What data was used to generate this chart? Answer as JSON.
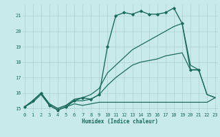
{
  "background_color": "#c8eaea",
  "grid_color": "#b0d0d0",
  "line_color": "#1a6b5a",
  "xlim": [
    -0.3,
    23.3
  ],
  "ylim": [
    14.75,
    21.75
  ],
  "xlabel": "Humidex (Indice chaleur)",
  "yticks": [
    15,
    16,
    17,
    18,
    19,
    20,
    21
  ],
  "xticks": [
    0,
    1,
    2,
    3,
    4,
    5,
    6,
    7,
    8,
    9,
    10,
    11,
    12,
    13,
    14,
    15,
    16,
    17,
    18,
    19,
    20,
    21,
    22,
    23
  ],
  "series": [
    {
      "x": [
        0,
        1,
        2,
        3,
        4,
        5,
        6,
        7,
        8,
        9,
        10,
        11,
        12,
        13,
        14,
        15,
        16,
        17,
        18,
        19,
        20,
        21,
        22,
        23
      ],
      "y": [
        15.1,
        15.4,
        15.9,
        15.2,
        14.9,
        15.1,
        15.3,
        15.2,
        15.3,
        15.4,
        15.4,
        15.4,
        15.4,
        15.4,
        15.4,
        15.4,
        15.4,
        15.4,
        15.4,
        15.4,
        15.4,
        15.4,
        15.4,
        15.7
      ],
      "marker": false,
      "linewidth": 0.9
    },
    {
      "x": [
        0,
        1,
        2,
        3,
        4,
        5,
        6,
        7,
        8,
        9,
        10,
        11,
        12,
        13,
        14,
        15,
        16,
        17,
        18,
        19,
        20,
        21,
        22,
        23
      ],
      "y": [
        15.1,
        15.5,
        16.0,
        15.3,
        15.0,
        15.2,
        15.5,
        15.5,
        15.6,
        15.9,
        16.5,
        17.0,
        17.4,
        17.8,
        18.0,
        18.1,
        18.2,
        18.4,
        18.5,
        18.6,
        17.5,
        17.5,
        15.9,
        15.7
      ],
      "marker": false,
      "linewidth": 0.9
    },
    {
      "x": [
        0,
        1,
        2,
        3,
        4,
        5,
        6,
        7,
        8,
        9,
        10,
        11,
        12,
        13,
        14,
        15,
        16,
        17,
        18,
        19,
        20,
        21,
        22,
        23
      ],
      "y": [
        15.1,
        15.5,
        16.0,
        15.3,
        15.0,
        15.2,
        15.6,
        15.7,
        15.9,
        16.3,
        17.3,
        17.8,
        18.3,
        18.8,
        19.1,
        19.4,
        19.7,
        20.0,
        20.3,
        20.5,
        17.8,
        17.5,
        15.9,
        15.7
      ],
      "marker": false,
      "linewidth": 0.9
    },
    {
      "x": [
        0,
        1,
        2,
        3,
        4,
        5,
        6,
        7,
        8,
        9,
        10,
        11,
        12,
        13,
        14,
        15,
        16,
        17,
        18,
        19,
        20,
        21
      ],
      "y": [
        15.1,
        15.5,
        16.0,
        15.2,
        14.9,
        15.1,
        15.5,
        15.7,
        15.6,
        15.9,
        19.0,
        21.0,
        21.2,
        21.1,
        21.3,
        21.1,
        21.1,
        21.2,
        21.5,
        20.5,
        17.5,
        17.5
      ],
      "marker": true,
      "linewidth": 1.0
    }
  ]
}
